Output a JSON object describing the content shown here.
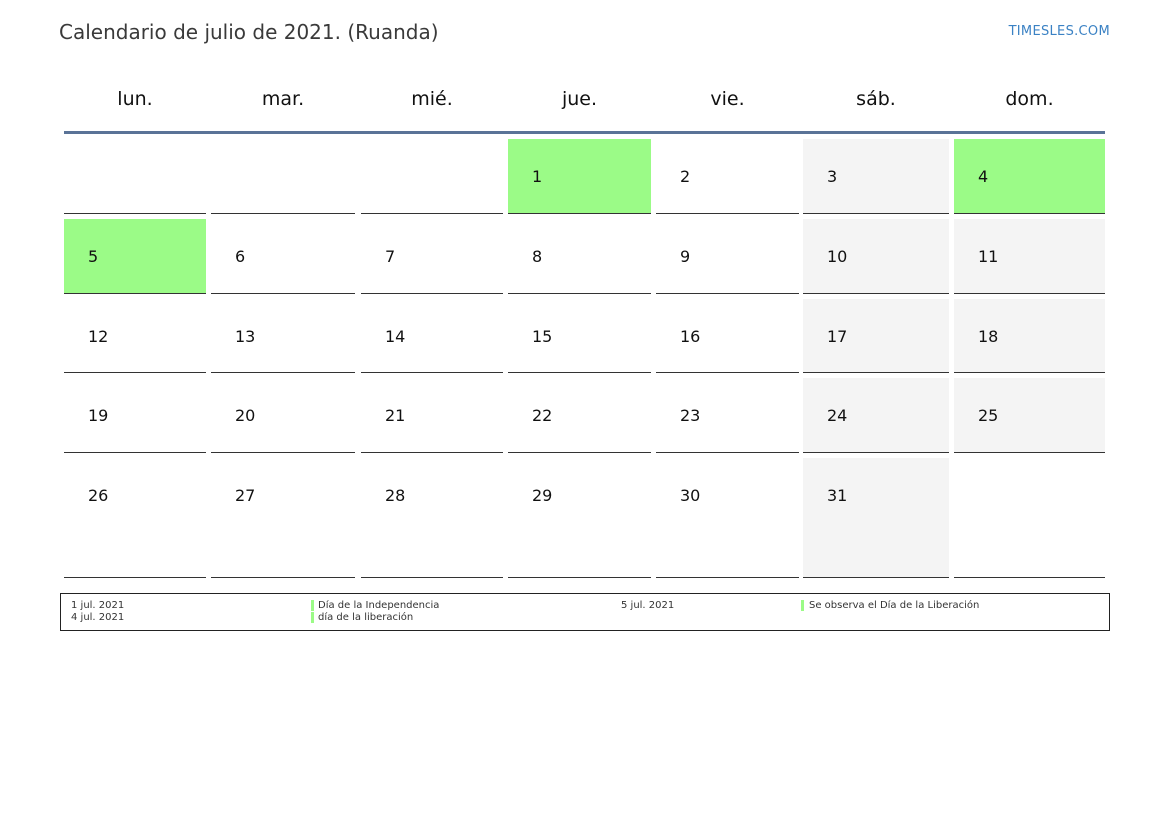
{
  "header": {
    "title": "Calendario de julio de 2021. (Ruanda)",
    "brand": "TIMESLES.COM"
  },
  "weekdays": [
    "lun.",
    "mar.",
    "mié.",
    "jue.",
    "vie.",
    "sáb.",
    "dom."
  ],
  "colors": {
    "holiday": "#9bfb87",
    "weekend": "#f4f4f4",
    "header_rule": "#5a7397"
  },
  "weeks": [
    [
      {
        "day": ""
      },
      {
        "day": ""
      },
      {
        "day": ""
      },
      {
        "day": "1",
        "holiday": true
      },
      {
        "day": "2"
      },
      {
        "day": "3",
        "weekend": true
      },
      {
        "day": "4",
        "holiday": true
      }
    ],
    [
      {
        "day": "5",
        "holiday": true
      },
      {
        "day": "6"
      },
      {
        "day": "7"
      },
      {
        "day": "8"
      },
      {
        "day": "9"
      },
      {
        "day": "10",
        "weekend": true
      },
      {
        "day": "11",
        "weekend": true
      }
    ],
    [
      {
        "day": "12"
      },
      {
        "day": "13"
      },
      {
        "day": "14"
      },
      {
        "day": "15"
      },
      {
        "day": "16"
      },
      {
        "day": "17",
        "weekend": true
      },
      {
        "day": "18",
        "weekend": true
      }
    ],
    [
      {
        "day": "19"
      },
      {
        "day": "20"
      },
      {
        "day": "21"
      },
      {
        "day": "22"
      },
      {
        "day": "23"
      },
      {
        "day": "24",
        "weekend": true
      },
      {
        "day": "25",
        "weekend": true
      }
    ],
    [
      {
        "day": "26"
      },
      {
        "day": "27"
      },
      {
        "day": "28"
      },
      {
        "day": "29"
      },
      {
        "day": "30"
      },
      {
        "day": "31",
        "weekend": true
      },
      {
        "day": ""
      }
    ]
  ],
  "holidays": [
    {
      "date": "1 jul. 2021",
      "name": "Día de la Independencia"
    },
    {
      "date": "4 jul. 2021",
      "name": "día de la liberación"
    },
    {
      "date": "5 jul. 2021",
      "name": "Se observa el Día de la Liberación"
    }
  ]
}
